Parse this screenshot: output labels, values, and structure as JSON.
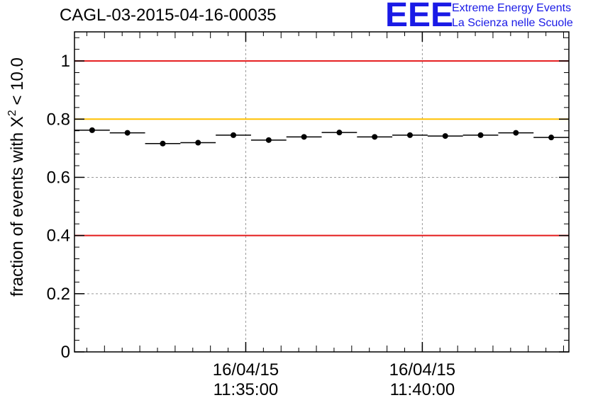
{
  "header": {
    "title": "CAGL-03-2015-04-16-00035",
    "logo_text": "EEE",
    "logo_line1": "Extreme Energy Events",
    "logo_line2": "La Scienza nelle Scuole",
    "logo_color": "#1a1ae6"
  },
  "chart_data": {
    "type": "scatter",
    "title": "CAGL-03-2015-04-16-00035",
    "xlabel": "",
    "ylabel": "fraction of events with χ² < 10.0",
    "ylabel_prefix": "fraction of events with ",
    "ylabel_symbol": "X",
    "ylabel_superscript": "2",
    "ylabel_suffix": " < 10.0",
    "ylim": [
      0,
      1.1
    ],
    "yticks": [
      0,
      0.2,
      0.4,
      0.6,
      0.8,
      1
    ],
    "ytick_labels": [
      "0",
      "0.2",
      "0.4",
      "0.6",
      "0.8",
      "1"
    ],
    "xlim": [
      "11:30:09",
      "11:44:09"
    ],
    "xtick_labels": [
      {
        "date": "16/04/15",
        "time": "11:35:00",
        "at": "11:35:00"
      },
      {
        "date": "16/04/15",
        "time": "11:40:00",
        "at": "11:40:00"
      }
    ],
    "grid": true,
    "bin_width_seconds": 60,
    "points": [
      {
        "t": "11:30:39",
        "y": 0.762,
        "err": 0.006
      },
      {
        "t": "11:31:39",
        "y": 0.753,
        "err": 0.006
      },
      {
        "t": "11:32:39",
        "y": 0.716,
        "err": 0.006
      },
      {
        "t": "11:33:39",
        "y": 0.719,
        "err": 0.006
      },
      {
        "t": "11:34:39",
        "y": 0.745,
        "err": 0.006
      },
      {
        "t": "11:35:39",
        "y": 0.728,
        "err": 0.006
      },
      {
        "t": "11:36:39",
        "y": 0.739,
        "err": 0.006
      },
      {
        "t": "11:37:39",
        "y": 0.754,
        "err": 0.006
      },
      {
        "t": "11:38:39",
        "y": 0.739,
        "err": 0.006
      },
      {
        "t": "11:39:39",
        "y": 0.745,
        "err": 0.006
      },
      {
        "t": "11:40:39",
        "y": 0.742,
        "err": 0.006
      },
      {
        "t": "11:41:39",
        "y": 0.745,
        "err": 0.006
      },
      {
        "t": "11:42:39",
        "y": 0.753,
        "err": 0.006
      },
      {
        "t": "11:43:39",
        "y": 0.737,
        "err": 0.006
      }
    ],
    "reference_lines": [
      {
        "y": 1.0,
        "color": "#e41a1c"
      },
      {
        "y": 0.8,
        "color": "#ffc000"
      },
      {
        "y": 0.4,
        "color": "#e41a1c"
      }
    ]
  }
}
